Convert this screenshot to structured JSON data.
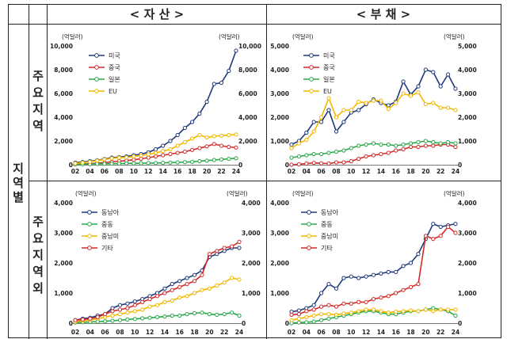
{
  "headers": {
    "assets": "< 자  산 >",
    "liabilities": "< 부  채 >"
  },
  "row_labels": {
    "group": [
      "지",
      "역",
      "별"
    ],
    "main_regions": [
      "주",
      "요",
      "지",
      "역"
    ],
    "other_regions": [
      "주",
      "요",
      "지",
      "역",
      "외"
    ]
  },
  "chart_data": [
    {
      "id": "assets-main",
      "type": "line",
      "unit_left": "(억달러)",
      "unit_right": "(억달러)",
      "x": [
        "02",
        "03",
        "04",
        "05",
        "06",
        "07",
        "08",
        "09",
        "10",
        "11",
        "12",
        "13",
        "14",
        "15",
        "16",
        "17",
        "18",
        "19",
        "20",
        "21",
        "22",
        "23",
        "24"
      ],
      "xticks": [
        "02",
        "04",
        "06",
        "08",
        "10",
        "12",
        "14",
        "16",
        "18",
        "20",
        "22",
        "24"
      ],
      "ylim": [
        0,
        10000
      ],
      "yticks": [
        0,
        2000,
        4000,
        6000,
        8000,
        10000
      ],
      "ytick_labels": [
        "0",
        "2,000",
        "4,000",
        "6,000",
        "8,000",
        "10,000"
      ],
      "series": [
        {
          "name": "미국",
          "color": "#1f3a7a",
          "values": [
            180,
            230,
            300,
            380,
            480,
            600,
            650,
            700,
            800,
            900,
            1050,
            1300,
            1600,
            2000,
            2500,
            3100,
            3600,
            4300,
            5300,
            6800,
            6900,
            7900,
            9600
          ]
        },
        {
          "name": "중국",
          "color": "#d42a2a",
          "values": [
            50,
            70,
            100,
            130,
            180,
            250,
            300,
            350,
            420,
            500,
            600,
            700,
            800,
            900,
            1000,
            1100,
            1250,
            1400,
            1550,
            1750,
            1600,
            1500,
            1450
          ]
        },
        {
          "name": "일본",
          "color": "#2aa84a",
          "values": [
            40,
            50,
            60,
            70,
            80,
            90,
            100,
            110,
            120,
            130,
            140,
            150,
            160,
            180,
            200,
            220,
            250,
            300,
            350,
            400,
            450,
            500,
            550
          ]
        },
        {
          "name": "EU",
          "color": "#f2b800",
          "values": [
            120,
            170,
            250,
            350,
            450,
            550,
            600,
            620,
            700,
            780,
            880,
            1000,
            1150,
            1300,
            1600,
            1900,
            2200,
            2500,
            2300,
            2400,
            2450,
            2500,
            2550
          ]
        }
      ]
    },
    {
      "id": "liab-main",
      "type": "line",
      "unit_left": "(억달러)",
      "unit_right": "(억달러)",
      "x": [
        "02",
        "03",
        "04",
        "05",
        "06",
        "07",
        "08",
        "09",
        "10",
        "11",
        "12",
        "13",
        "14",
        "15",
        "16",
        "17",
        "18",
        "19",
        "20",
        "21",
        "22",
        "23",
        "24"
      ],
      "xticks": [
        "02",
        "04",
        "06",
        "08",
        "10",
        "12",
        "14",
        "16",
        "18",
        "20",
        "22",
        "24"
      ],
      "ylim": [
        0,
        5000
      ],
      "yticks": [
        0,
        1000,
        2000,
        3000,
        4000,
        5000
      ],
      "ytick_labels": [
        "0",
        "1,000",
        "2,000",
        "3,000",
        "4,000",
        "5,000"
      ],
      "series": [
        {
          "name": "미국",
          "color": "#1f3a7a",
          "values": [
            850,
            1000,
            1350,
            1800,
            1800,
            2300,
            1400,
            1800,
            2200,
            2300,
            2550,
            2750,
            2600,
            2500,
            2650,
            3500,
            2950,
            3300,
            4000,
            3900,
            3300,
            3800,
            3200
          ]
        },
        {
          "name": "중국",
          "color": "#d42a2a",
          "values": [
            0,
            20,
            50,
            80,
            60,
            50,
            100,
            100,
            150,
            250,
            350,
            400,
            450,
            500,
            600,
            650,
            750,
            750,
            800,
            800,
            850,
            850,
            750
          ]
        },
        {
          "name": "일본",
          "color": "#2aa84a",
          "values": [
            300,
            350,
            400,
            450,
            450,
            500,
            550,
            600,
            700,
            800,
            850,
            900,
            850,
            850,
            800,
            850,
            900,
            950,
            1000,
            950,
            900,
            950,
            900
          ]
        },
        {
          "name": "EU",
          "color": "#f2b800",
          "values": [
            700,
            900,
            1050,
            1400,
            2000,
            2800,
            2000,
            2300,
            2300,
            2650,
            2600,
            2700,
            2700,
            2350,
            2600,
            3000,
            2900,
            3050,
            2550,
            2600,
            2400,
            2400,
            2300
          ]
        }
      ]
    },
    {
      "id": "assets-other",
      "type": "line",
      "unit_left": "(억달러)",
      "unit_right": "(억달러)",
      "x": [
        "02",
        "03",
        "04",
        "05",
        "06",
        "07",
        "08",
        "09",
        "10",
        "11",
        "12",
        "13",
        "14",
        "15",
        "16",
        "17",
        "18",
        "19",
        "20",
        "21",
        "22",
        "23",
        "24"
      ],
      "xticks": [
        "02",
        "04",
        "06",
        "08",
        "10",
        "12",
        "14",
        "16",
        "18",
        "20",
        "22",
        "24"
      ],
      "ylim": [
        0,
        4000
      ],
      "yticks": [
        0,
        1000,
        2000,
        3000,
        4000
      ],
      "ytick_labels": [
        "0",
        "1,000",
        "2,000",
        "3,000",
        "4,000"
      ],
      "series": [
        {
          "name": "동남아",
          "color": "#1f3a7a",
          "values": [
            100,
            150,
            180,
            250,
            300,
            500,
            600,
            650,
            720,
            800,
            900,
            1000,
            1150,
            1300,
            1400,
            1500,
            1600,
            1750,
            2200,
            2300,
            2400,
            2500,
            2500
          ]
        },
        {
          "name": "중동",
          "color": "#2aa84a",
          "values": [
            20,
            30,
            40,
            50,
            60,
            80,
            100,
            120,
            140,
            160,
            180,
            200,
            220,
            250,
            250,
            300,
            330,
            350,
            300,
            280,
            300,
            350,
            250
          ]
        },
        {
          "name": "중남미",
          "color": "#f2b800",
          "values": [
            50,
            80,
            100,
            150,
            200,
            250,
            300,
            350,
            400,
            450,
            550,
            600,
            700,
            750,
            850,
            900,
            1000,
            1100,
            1150,
            1250,
            1350,
            1500,
            1450
          ]
        },
        {
          "name": "기타",
          "color": "#d42a2a",
          "values": [
            100,
            120,
            150,
            200,
            300,
            400,
            450,
            500,
            600,
            700,
            800,
            900,
            1000,
            1100,
            1200,
            1300,
            1400,
            1600,
            2300,
            2400,
            2500,
            2550,
            2700
          ]
        }
      ]
    },
    {
      "id": "liab-other",
      "type": "line",
      "unit_left": "(억달러)",
      "unit_right": "(억달러)",
      "x": [
        "02",
        "03",
        "04",
        "05",
        "06",
        "07",
        "08",
        "09",
        "10",
        "11",
        "12",
        "13",
        "14",
        "15",
        "16",
        "17",
        "18",
        "19",
        "20",
        "21",
        "22",
        "23",
        "24"
      ],
      "xticks": [
        "02",
        "04",
        "06",
        "08",
        "10",
        "12",
        "14",
        "16",
        "18",
        "20",
        "22",
        "24"
      ],
      "ylim": [
        0,
        4000
      ],
      "yticks": [
        0,
        1000,
        2000,
        3000,
        4000
      ],
      "ytick_labels": [
        "0",
        "1,000",
        "2,000",
        "3,000",
        "4,000"
      ],
      "series": [
        {
          "name": "동남아",
          "color": "#1f3a7a",
          "values": [
            380,
            420,
            500,
            600,
            1000,
            1300,
            1150,
            1500,
            1550,
            1500,
            1550,
            1600,
            1650,
            1700,
            1700,
            1900,
            2000,
            2300,
            2800,
            3300,
            3200,
            3250,
            3300
          ]
        },
        {
          "name": "중동",
          "color": "#2aa84a",
          "values": [
            0,
            20,
            30,
            50,
            100,
            150,
            200,
            250,
            300,
            350,
            400,
            400,
            350,
            300,
            300,
            350,
            400,
            400,
            450,
            500,
            450,
            400,
            250
          ]
        },
        {
          "name": "중남미",
          "color": "#f2b800",
          "values": [
            100,
            150,
            200,
            250,
            300,
            300,
            280,
            320,
            350,
            400,
            450,
            450,
            400,
            350,
            380,
            400,
            420,
            400,
            450,
            400,
            450,
            450,
            450
          ]
        },
        {
          "name": "기타",
          "color": "#d42a2a",
          "values": [
            280,
            300,
            400,
            450,
            550,
            600,
            550,
            650,
            650,
            700,
            700,
            800,
            850,
            900,
            1000,
            1100,
            1200,
            1300,
            2900,
            2800,
            2900,
            3200,
            3000
          ]
        }
      ]
    }
  ]
}
